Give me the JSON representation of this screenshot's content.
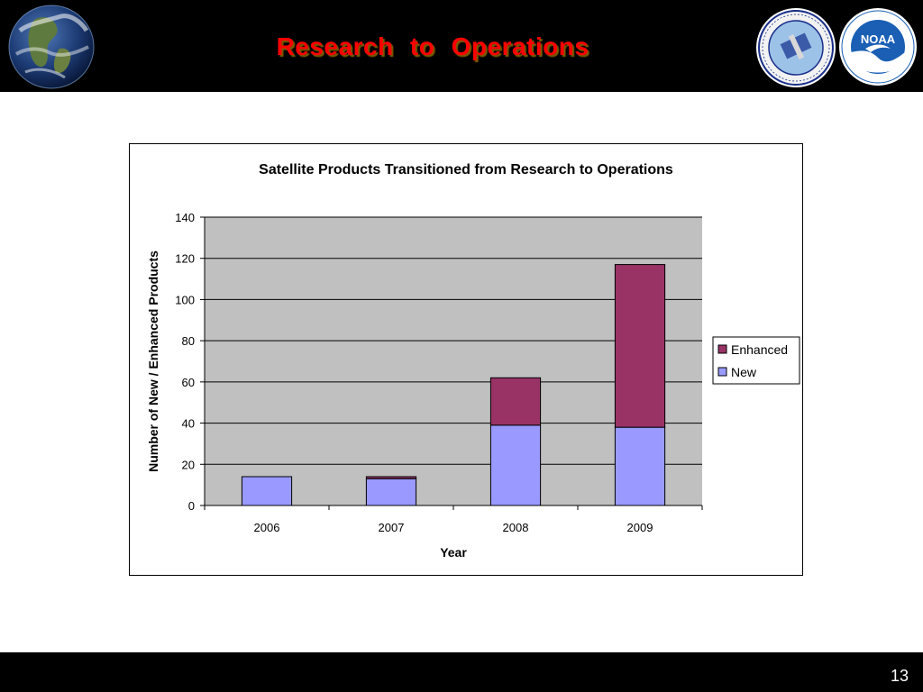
{
  "slide": {
    "title": "Research  to  Operations",
    "page_number": "13"
  },
  "logos": {
    "globe": "earth-globe-image",
    "star": "NOAA NESDIS STAR seal",
    "noaa": "NOAA"
  },
  "colors": {
    "title": "#ff0000",
    "plot_bg": "#c0c0c0",
    "new": "#9999ff",
    "enhanced": "#993366"
  },
  "chart_data": {
    "type": "bar",
    "stacked": true,
    "title": "Satellite Products Transitioned from Research to Operations",
    "xlabel": "Year",
    "ylabel": "Number of New / Enhanced Products",
    "categories": [
      "2006",
      "2007",
      "2008",
      "2009"
    ],
    "series": [
      {
        "name": "New",
        "values": [
          14,
          13,
          39,
          38
        ],
        "color": "#9999ff"
      },
      {
        "name": "Enhanced",
        "values": [
          0,
          1,
          23,
          79
        ],
        "color": "#993366"
      }
    ],
    "ylim": [
      0,
      140
    ],
    "yticks": [
      "0",
      "20",
      "40",
      "60",
      "80",
      "100",
      "120",
      "140"
    ],
    "grid": true,
    "legend": "right",
    "legend_order": [
      "Enhanced",
      "New"
    ]
  }
}
